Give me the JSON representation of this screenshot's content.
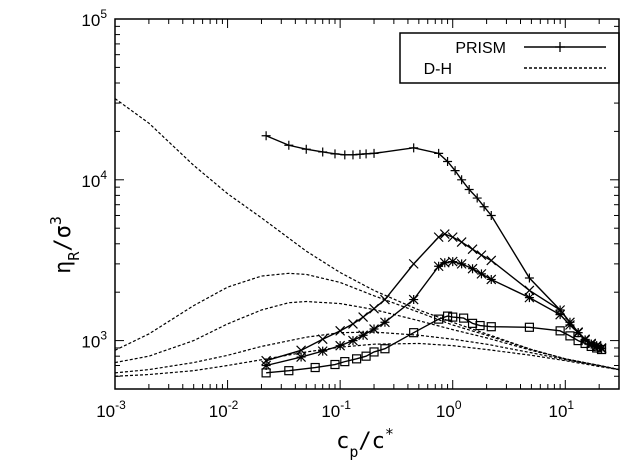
{
  "chart_data": {
    "type": "line",
    "xlabel": {
      "main": "c",
      "sub": "p",
      "slash": "/c",
      "sup": "*"
    },
    "ylabel": {
      "main": "η",
      "sub": "R",
      "slash": "/σ",
      "sup": "3"
    },
    "xscale": "log",
    "yscale": "log",
    "xlim": [
      0.001,
      30
    ],
    "ylim": [
      500,
      100000
    ],
    "xticks": [
      {
        "base": "10",
        "exp": "-3",
        "value": 0.001
      },
      {
        "base": "10",
        "exp": "-2",
        "value": 0.01
      },
      {
        "base": "10",
        "exp": "-1",
        "value": 0.1
      },
      {
        "base": "10",
        "exp": "0",
        "value": 1
      },
      {
        "base": "10",
        "exp": "1",
        "value": 10
      }
    ],
    "yticks": [
      {
        "base": "10",
        "exp": "3",
        "value": 1000
      },
      {
        "base": "10",
        "exp": "4",
        "value": 10000
      },
      {
        "base": "10",
        "exp": "5",
        "value": 100000
      }
    ],
    "grid": false,
    "legend": {
      "position": "top-right",
      "entries": [
        {
          "label": "PRISM",
          "style": "solid",
          "marker": "plus"
        },
        {
          "label": "D-H",
          "style": "dashed",
          "marker": "none"
        }
      ]
    },
    "series": [
      {
        "group": "PRISM",
        "style": "solid",
        "marker": "plus",
        "points": [
          [
            0.022,
            18800
          ],
          [
            0.035,
            16400
          ],
          [
            0.05,
            15500
          ],
          [
            0.07,
            14900
          ],
          [
            0.09,
            14500
          ],
          [
            0.11,
            14300
          ],
          [
            0.13,
            14300
          ],
          [
            0.15,
            14400
          ],
          [
            0.17,
            14500
          ],
          [
            0.2,
            14600
          ],
          [
            0.45,
            15800
          ],
          [
            0.75,
            14600
          ],
          [
            0.9,
            13000
          ],
          [
            1.05,
            11400
          ],
          [
            1.2,
            10000
          ],
          [
            1.4,
            8700
          ],
          [
            1.65,
            7700
          ],
          [
            1.9,
            6800
          ],
          [
            2.2,
            6000
          ],
          [
            4.8,
            2450
          ],
          [
            9,
            1550
          ],
          [
            11,
            1300
          ],
          [
            13,
            1120
          ],
          [
            15,
            1000
          ],
          [
            17,
            950
          ],
          [
            19,
            930
          ],
          [
            21,
            900
          ]
        ]
      },
      {
        "group": "PRISM",
        "style": "solid",
        "marker": "x",
        "points": [
          [
            0.022,
            750
          ],
          [
            0.045,
            870
          ],
          [
            0.07,
            1020
          ],
          [
            0.1,
            1150
          ],
          [
            0.13,
            1270
          ],
          [
            0.16,
            1400
          ],
          [
            0.2,
            1580
          ],
          [
            0.25,
            1800
          ],
          [
            0.45,
            3000
          ],
          [
            0.75,
            4400
          ],
          [
            0.85,
            4600
          ],
          [
            1.0,
            4400
          ],
          [
            1.2,
            4100
          ],
          [
            1.5,
            3700
          ],
          [
            1.8,
            3400
          ],
          [
            2.2,
            3150
          ],
          [
            4.8,
            2050
          ],
          [
            9,
            1550
          ],
          [
            11,
            1300
          ],
          [
            13,
            1130
          ],
          [
            15,
            1020
          ],
          [
            17,
            960
          ],
          [
            19,
            930
          ],
          [
            21,
            900
          ]
        ]
      },
      {
        "group": "PRISM",
        "style": "solid",
        "marker": "star",
        "points": [
          [
            0.022,
            700
          ],
          [
            0.045,
            790
          ],
          [
            0.07,
            860
          ],
          [
            0.1,
            930
          ],
          [
            0.13,
            1000
          ],
          [
            0.16,
            1080
          ],
          [
            0.2,
            1180
          ],
          [
            0.25,
            1300
          ],
          [
            0.45,
            1800
          ],
          [
            0.75,
            2900
          ],
          [
            0.85,
            3050
          ],
          [
            1.0,
            3100
          ],
          [
            1.2,
            3000
          ],
          [
            1.5,
            2800
          ],
          [
            1.8,
            2600
          ],
          [
            2.2,
            2400
          ],
          [
            4.8,
            1850
          ],
          [
            9,
            1450
          ],
          [
            11,
            1250
          ],
          [
            13,
            1120
          ],
          [
            15,
            1010
          ],
          [
            17,
            950
          ],
          [
            19,
            920
          ],
          [
            21,
            890
          ]
        ]
      },
      {
        "group": "PRISM",
        "style": "solid",
        "marker": "square",
        "points": [
          [
            0.022,
            630
          ],
          [
            0.035,
            650
          ],
          [
            0.06,
            680
          ],
          [
            0.09,
            710
          ],
          [
            0.11,
            740
          ],
          [
            0.14,
            770
          ],
          [
            0.17,
            800
          ],
          [
            0.2,
            850
          ],
          [
            0.25,
            890
          ],
          [
            0.45,
            1120
          ],
          [
            0.75,
            1360
          ],
          [
            0.9,
            1420
          ],
          [
            1.0,
            1400
          ],
          [
            1.25,
            1380
          ],
          [
            1.5,
            1280
          ],
          [
            1.75,
            1240
          ],
          [
            2.2,
            1220
          ],
          [
            4.8,
            1210
          ],
          [
            9,
            1150
          ],
          [
            11,
            1070
          ],
          [
            13,
            1000
          ],
          [
            15,
            960
          ],
          [
            17,
            920
          ],
          [
            19,
            900
          ],
          [
            21,
            880
          ]
        ]
      },
      {
        "group": "D-H",
        "style": "dashed",
        "marker": "none",
        "points": [
          [
            0.001,
            32000
          ],
          [
            0.002,
            22500
          ],
          [
            0.005,
            12300
          ],
          [
            0.01,
            8200
          ],
          [
            0.02,
            5800
          ],
          [
            0.05,
            3600
          ],
          [
            0.1,
            2650
          ],
          [
            0.2,
            2050
          ],
          [
            0.5,
            1550
          ],
          [
            1,
            1300
          ],
          [
            2,
            1100
          ],
          [
            5,
            880
          ],
          [
            10,
            770
          ],
          [
            20,
            700
          ],
          [
            30,
            660
          ]
        ]
      },
      {
        "group": "D-H",
        "style": "dashed",
        "marker": "none",
        "points": [
          [
            0.001,
            870
          ],
          [
            0.002,
            1100
          ],
          [
            0.005,
            1650
          ],
          [
            0.01,
            2150
          ],
          [
            0.02,
            2520
          ],
          [
            0.035,
            2620
          ],
          [
            0.05,
            2580
          ],
          [
            0.1,
            2300
          ],
          [
            0.2,
            1900
          ],
          [
            0.5,
            1500
          ],
          [
            1,
            1250
          ],
          [
            2,
            1080
          ],
          [
            5,
            880
          ],
          [
            10,
            770
          ],
          [
            20,
            700
          ],
          [
            30,
            660
          ]
        ]
      },
      {
        "group": "D-H",
        "style": "dashed",
        "marker": "none",
        "points": [
          [
            0.001,
            730
          ],
          [
            0.002,
            800
          ],
          [
            0.005,
            1000
          ],
          [
            0.01,
            1270
          ],
          [
            0.02,
            1550
          ],
          [
            0.035,
            1720
          ],
          [
            0.05,
            1750
          ],
          [
            0.1,
            1700
          ],
          [
            0.2,
            1560
          ],
          [
            0.5,
            1330
          ],
          [
            1,
            1170
          ],
          [
            2,
            1040
          ],
          [
            5,
            870
          ],
          [
            10,
            770
          ],
          [
            20,
            700
          ],
          [
            30,
            660
          ]
        ]
      },
      {
        "group": "D-H",
        "style": "dashed",
        "marker": "none",
        "points": [
          [
            0.001,
            630
          ],
          [
            0.002,
            660
          ],
          [
            0.005,
            730
          ],
          [
            0.01,
            810
          ],
          [
            0.02,
            920
          ],
          [
            0.05,
            1050
          ],
          [
            0.1,
            1120
          ],
          [
            0.2,
            1130
          ],
          [
            0.5,
            1080
          ],
          [
            1,
            1020
          ],
          [
            2,
            950
          ],
          [
            5,
            840
          ],
          [
            10,
            760
          ],
          [
            20,
            700
          ],
          [
            30,
            660
          ]
        ]
      },
      {
        "group": "D-H",
        "style": "dashed",
        "marker": "none",
        "points": [
          [
            0.001,
            600
          ],
          [
            0.002,
            615
          ],
          [
            0.005,
            650
          ],
          [
            0.01,
            700
          ],
          [
            0.02,
            760
          ],
          [
            0.05,
            850
          ],
          [
            0.1,
            910
          ],
          [
            0.2,
            950
          ],
          [
            0.5,
            960
          ],
          [
            1,
            930
          ],
          [
            2,
            880
          ],
          [
            5,
            810
          ],
          [
            10,
            750
          ],
          [
            20,
            690
          ],
          [
            30,
            660
          ]
        ]
      }
    ]
  }
}
